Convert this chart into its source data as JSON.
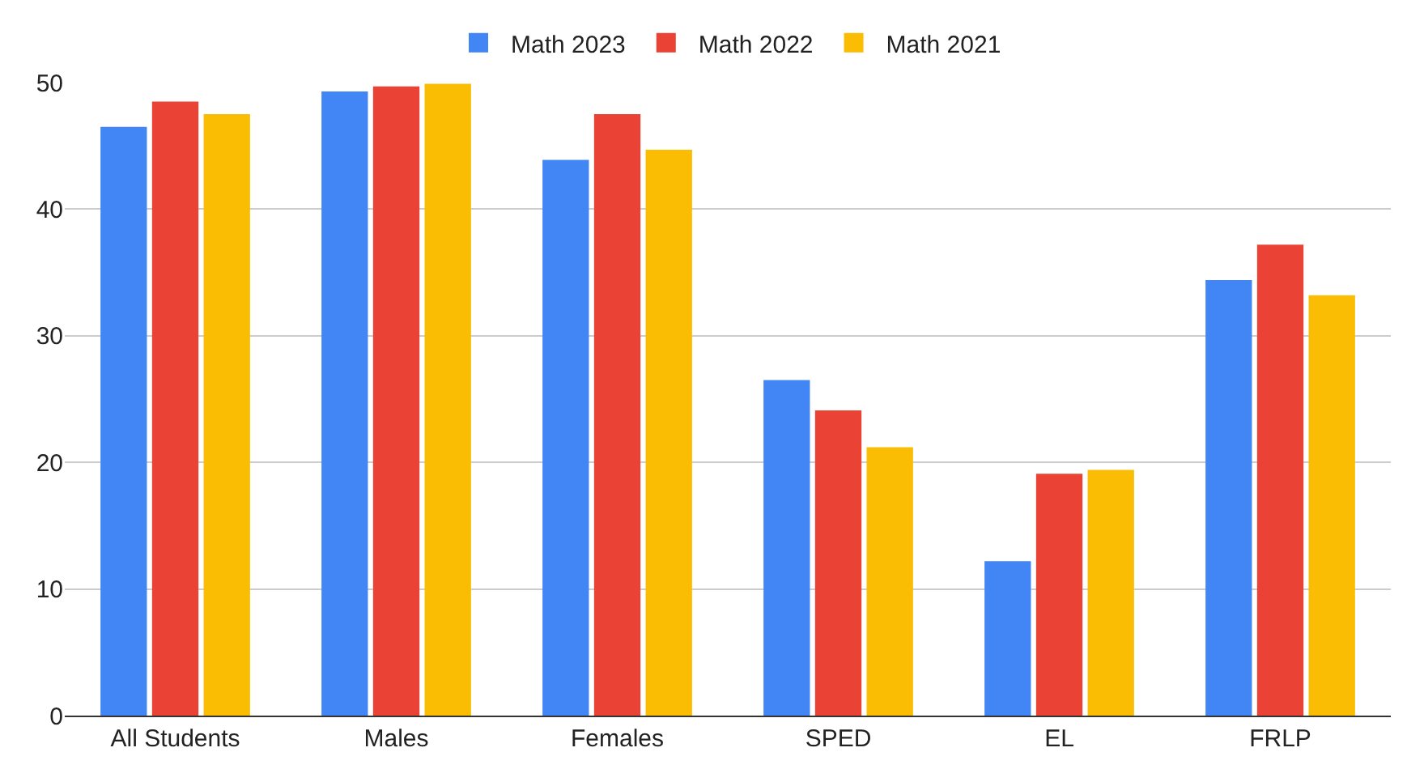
{
  "chart_data": {
    "type": "bar",
    "categories": [
      "All Students",
      "Males",
      "Females",
      "SPED",
      "EL",
      "FRLP"
    ],
    "series": [
      {
        "name": "Math 2023",
        "color": "#4285f4",
        "values": [
          46.5,
          49.3,
          43.9,
          26.5,
          12.2,
          34.4
        ]
      },
      {
        "name": "Math 2022",
        "color": "#ea4335",
        "values": [
          48.5,
          49.7,
          47.5,
          24.1,
          19.1,
          37.2
        ]
      },
      {
        "name": "Math 2021",
        "color": "#fbbc04",
        "values": [
          47.5,
          49.9,
          44.7,
          21.2,
          19.4,
          33.2
        ]
      }
    ],
    "ylim": [
      0,
      50
    ],
    "yticks": [
      0,
      10,
      20,
      30,
      40,
      50
    ],
    "grid": "y",
    "legend": "top"
  }
}
